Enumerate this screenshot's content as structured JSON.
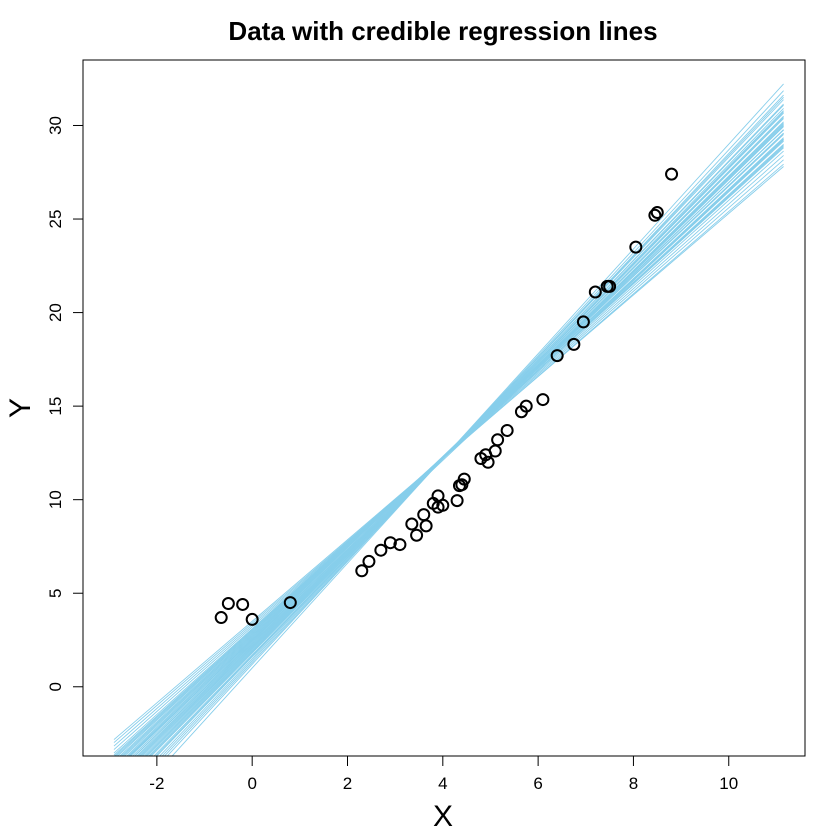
{
  "chart_data": {
    "type": "scatter",
    "title": "Data with credible regression lines",
    "xlabel": "X",
    "ylabel": "Y",
    "xlim": [
      -3.55,
      11.6
    ],
    "ylim": [
      -3.7,
      33.5
    ],
    "xticks": [
      -2,
      0,
      2,
      4,
      6,
      8,
      10
    ],
    "yticks": [
      0,
      5,
      10,
      15,
      20,
      25,
      30
    ],
    "grid": false,
    "point_color": "#000000",
    "line_color": "#87CEEB",
    "line_x_range": [
      -2.9,
      11.15
    ],
    "points": [
      {
        "x": -0.65,
        "y": 3.7
      },
      {
        "x": -0.5,
        "y": 4.45
      },
      {
        "x": -0.2,
        "y": 4.4
      },
      {
        "x": 0.0,
        "y": 3.6
      },
      {
        "x": 0.8,
        "y": 4.5
      },
      {
        "x": 2.3,
        "y": 6.2
      },
      {
        "x": 2.45,
        "y": 6.7
      },
      {
        "x": 2.7,
        "y": 7.3
      },
      {
        "x": 2.9,
        "y": 7.7
      },
      {
        "x": 3.1,
        "y": 7.6
      },
      {
        "x": 3.35,
        "y": 8.7
      },
      {
        "x": 3.45,
        "y": 8.1
      },
      {
        "x": 3.6,
        "y": 9.2
      },
      {
        "x": 3.65,
        "y": 8.6
      },
      {
        "x": 3.8,
        "y": 9.8
      },
      {
        "x": 3.9,
        "y": 9.6
      },
      {
        "x": 3.9,
        "y": 10.2
      },
      {
        "x": 4.0,
        "y": 9.7
      },
      {
        "x": 4.3,
        "y": 9.95
      },
      {
        "x": 4.35,
        "y": 10.75
      },
      {
        "x": 4.4,
        "y": 10.8
      },
      {
        "x": 4.45,
        "y": 11.1
      },
      {
        "x": 4.8,
        "y": 12.2
      },
      {
        "x": 4.9,
        "y": 12.4
      },
      {
        "x": 4.95,
        "y": 12.0
      },
      {
        "x": 5.1,
        "y": 12.6
      },
      {
        "x": 5.15,
        "y": 13.2
      },
      {
        "x": 5.35,
        "y": 13.7
      },
      {
        "x": 5.65,
        "y": 14.7
      },
      {
        "x": 5.75,
        "y": 15.0
      },
      {
        "x": 6.1,
        "y": 15.35
      },
      {
        "x": 6.4,
        "y": 17.7
      },
      {
        "x": 6.75,
        "y": 18.3
      },
      {
        "x": 6.95,
        "y": 19.5
      },
      {
        "x": 7.2,
        "y": 21.1
      },
      {
        "x": 7.45,
        "y": 21.4
      },
      {
        "x": 7.5,
        "y": 21.4
      },
      {
        "x": 8.05,
        "y": 23.5
      },
      {
        "x": 8.45,
        "y": 25.2
      },
      {
        "x": 8.5,
        "y": 25.35
      },
      {
        "x": 8.8,
        "y": 27.4
      }
    ],
    "regression_lines": [
      {
        "intercept": 2.45,
        "slope": 2.45
      },
      {
        "intercept": 2.6,
        "slope": 2.42
      },
      {
        "intercept": 2.2,
        "slope": 2.5
      },
      {
        "intercept": 2.0,
        "slope": 2.55
      },
      {
        "intercept": 1.8,
        "slope": 2.6
      },
      {
        "intercept": 2.3,
        "slope": 2.48
      },
      {
        "intercept": 2.8,
        "slope": 2.37
      },
      {
        "intercept": 3.0,
        "slope": 2.32
      },
      {
        "intercept": 3.2,
        "slope": 2.26
      },
      {
        "intercept": 1.6,
        "slope": 2.65
      },
      {
        "intercept": 1.4,
        "slope": 2.7
      },
      {
        "intercept": 2.5,
        "slope": 2.4
      },
      {
        "intercept": 2.1,
        "slope": 2.52
      },
      {
        "intercept": 1.9,
        "slope": 2.58
      },
      {
        "intercept": 2.7,
        "slope": 2.39
      },
      {
        "intercept": 3.4,
        "slope": 2.2
      },
      {
        "intercept": 1.2,
        "slope": 2.75
      },
      {
        "intercept": 2.35,
        "slope": 2.46
      },
      {
        "intercept": 2.9,
        "slope": 2.34
      },
      {
        "intercept": 1.7,
        "slope": 2.62
      },
      {
        "intercept": 2.55,
        "slope": 2.44
      },
      {
        "intercept": 1.5,
        "slope": 2.68
      },
      {
        "intercept": 3.1,
        "slope": 2.29
      },
      {
        "intercept": 2.05,
        "slope": 2.54
      },
      {
        "intercept": 2.65,
        "slope": 2.41
      },
      {
        "intercept": 1.3,
        "slope": 2.72
      },
      {
        "intercept": 3.3,
        "slope": 2.23
      },
      {
        "intercept": 2.25,
        "slope": 2.49
      },
      {
        "intercept": 2.75,
        "slope": 2.38
      },
      {
        "intercept": 1.85,
        "slope": 2.59
      },
      {
        "intercept": 2.95,
        "slope": 2.33
      },
      {
        "intercept": 1.0,
        "slope": 2.8
      },
      {
        "intercept": 2.15,
        "slope": 2.51
      },
      {
        "intercept": 2.4,
        "slope": 2.47
      },
      {
        "intercept": 3.5,
        "slope": 2.18
      },
      {
        "intercept": 1.65,
        "slope": 2.64
      },
      {
        "intercept": 2.85,
        "slope": 2.36
      },
      {
        "intercept": 1.95,
        "slope": 2.56
      },
      {
        "intercept": 2.5,
        "slope": 2.43
      },
      {
        "intercept": 3.05,
        "slope": 2.31
      }
    ]
  }
}
